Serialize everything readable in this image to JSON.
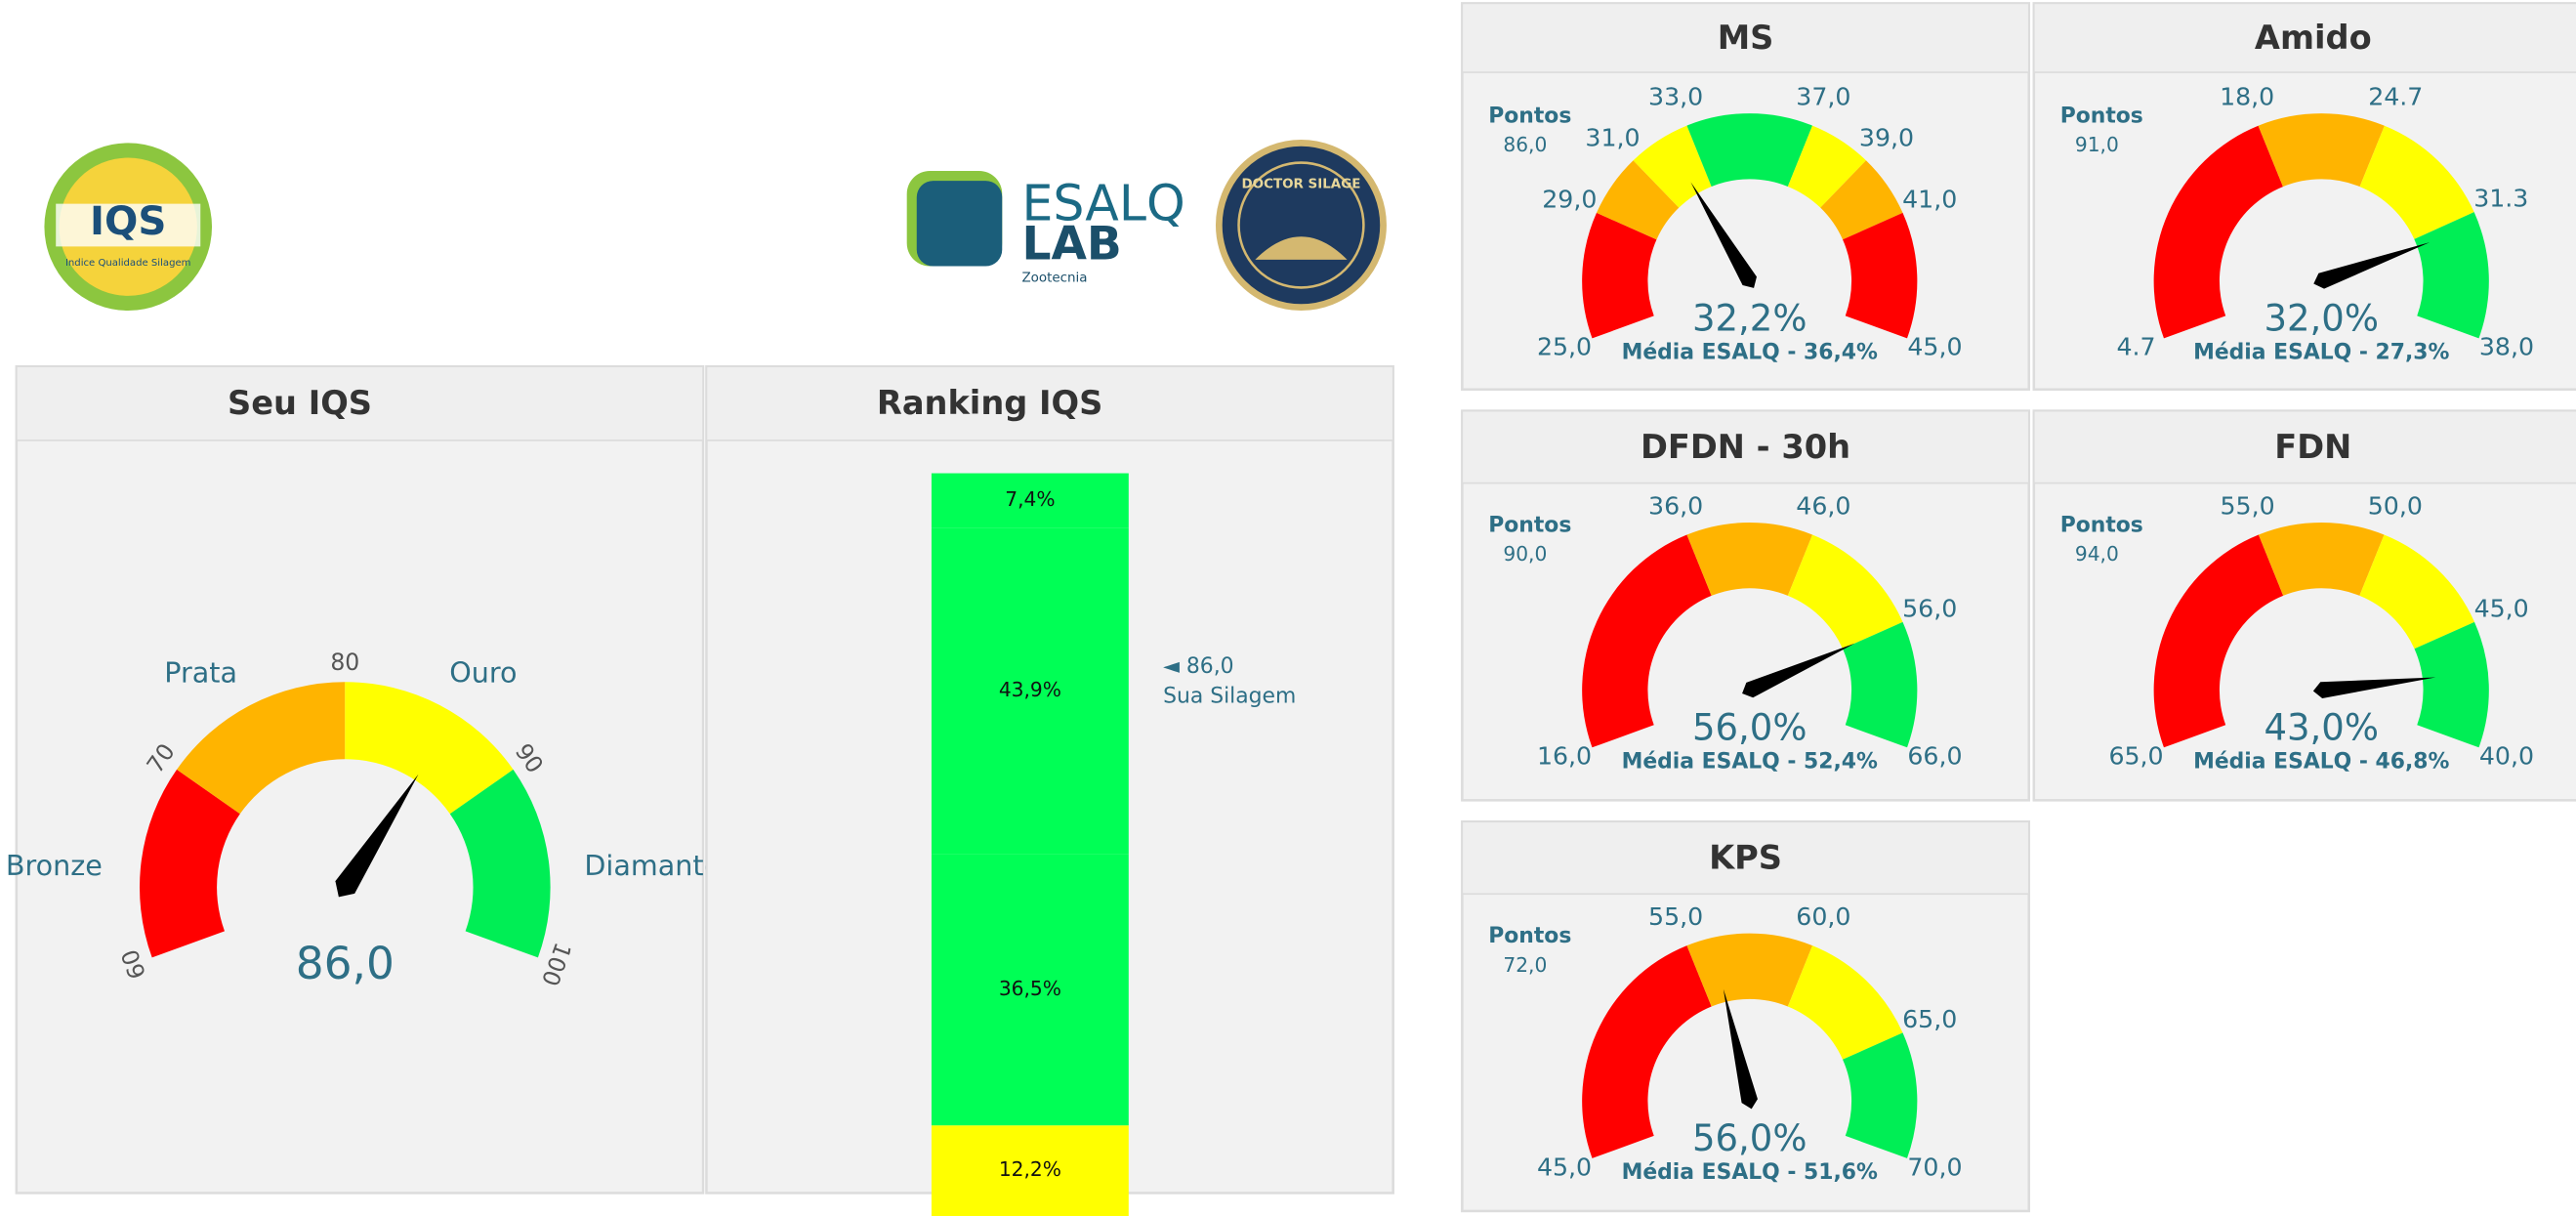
{
  "logos": {
    "iqs": "IQS",
    "iqs_sub": "Indice Qualidade Silagem",
    "esalq": "ESALQ",
    "lab": "LAB",
    "zoo": "Zootecnia",
    "doctor": "DOCTOR SILAGE"
  },
  "chart_data": [
    {
      "type": "gauge",
      "title": "Seu IQS",
      "value": 86,
      "value_label": "86,0",
      "ylim": [
        60,
        100
      ],
      "yticks": [
        60,
        70,
        80,
        90,
        100
      ],
      "band_colors": [
        "#ff0000",
        "#ffb400",
        "#ffff00",
        "#00ee55"
      ],
      "band_labels": [
        "Bronze",
        "Prata",
        "Ouro",
        "Diamante"
      ]
    },
    {
      "type": "stacked-bar",
      "title": "Ranking IQS",
      "ylim": [
        0,
        100
      ],
      "values": [
        12.2,
        36.5,
        43.9,
        7.4
      ],
      "value_labels": [
        "12,2%",
        "36,5%",
        "43,9%",
        "7,4%"
      ],
      "colors": [
        "#ffff00",
        "#00ff55",
        "#00ff55",
        "#00ff55"
      ],
      "annotation": "◄ 86,0",
      "annotation_sub": "Sua Silagem"
    },
    {
      "type": "gauge",
      "title": "MS",
      "points_label": "Pontos",
      "points": "86,0",
      "value": 32.2,
      "value_label": "32,2%",
      "subtitle": "Média ESALQ - 36,4%",
      "ylim": [
        25,
        45
      ],
      "yticks": [
        {
          "value": 25,
          "label": "25,0"
        },
        {
          "value": 29,
          "label": "29,0"
        },
        {
          "value": 31,
          "label": "31,0"
        },
        {
          "value": 33,
          "label": "33,0"
        },
        {
          "value": 37,
          "label": "37,0"
        },
        {
          "value": 39,
          "label": "39,0"
        },
        {
          "value": 41,
          "label": "41,0"
        },
        {
          "value": 45,
          "label": "45,0"
        }
      ],
      "band_colors": [
        "#ff0000",
        "#ffb400",
        "#ffff00",
        "#00ee55",
        "#ffff00",
        "#ffb400",
        "#ff0000"
      ]
    },
    {
      "type": "gauge",
      "title": "Amido",
      "points_label": "Pontos",
      "points": "91,0",
      "value": 32.0,
      "value_label": "32,0%",
      "subtitle": "Média ESALQ - 27,3%",
      "ylim": [
        4.7,
        38.0
      ],
      "yticks": [
        4.7,
        {
          "value": 18.0,
          "label": "18,0"
        },
        24.7,
        31.3,
        {
          "value": 38.0,
          "label": "38,0"
        }
      ],
      "band_colors": [
        "#ff0000",
        "#ffb400",
        "#ffff00",
        "#00ee55"
      ]
    },
    {
      "type": "gauge",
      "title": "DFDN - 30h",
      "points_label": "Pontos",
      "points": "90,0",
      "value": 56.0,
      "value_label": "56,0%",
      "subtitle": "Média ESALQ - 52,4%",
      "ylim": [
        16,
        66
      ],
      "yticks": [
        {
          "value": 16,
          "label": "16,0"
        },
        {
          "value": 36,
          "label": "36,0"
        },
        {
          "value": 46,
          "label": "46,0"
        },
        {
          "value": 56,
          "label": "56,0"
        },
        {
          "value": 66,
          "label": "66,0"
        }
      ],
      "band_colors": [
        "#ff0000",
        "#ffb400",
        "#ffff00",
        "#00ee55"
      ]
    },
    {
      "type": "gauge",
      "title": "FDN",
      "points_label": "Pontos",
      "points": "94,0",
      "value": 43.0,
      "value_label": "43,0%",
      "subtitle": "Média ESALQ - 46,8%",
      "ylim": [
        65,
        40
      ],
      "yticks": [
        {
          "value": 65,
          "label": "65,0"
        },
        {
          "value": 55,
          "label": "55,0"
        },
        {
          "value": 50,
          "label": "50,0"
        },
        {
          "value": 45,
          "label": "45,0"
        },
        {
          "value": 40,
          "label": "40,0"
        }
      ],
      "band_colors": [
        "#ff0000",
        "#ffb400",
        "#ffff00",
        "#00ee55"
      ]
    },
    {
      "type": "gauge",
      "title": "KPS",
      "points_label": "Pontos",
      "points": "72,0",
      "value": 56.0,
      "value_label": "56,0%",
      "subtitle": "Média ESALQ - 51,6%",
      "ylim": [
        45,
        70
      ],
      "yticks": [
        {
          "value": 45,
          "label": "45,0"
        },
        {
          "value": 55,
          "label": "55,0"
        },
        {
          "value": 60,
          "label": "60,0"
        },
        {
          "value": 65,
          "label": "65,0"
        },
        {
          "value": 70,
          "label": "70,0"
        }
      ],
      "band_colors": [
        "#ff0000",
        "#ffb400",
        "#ffff00",
        "#00ee55"
      ]
    }
  ]
}
